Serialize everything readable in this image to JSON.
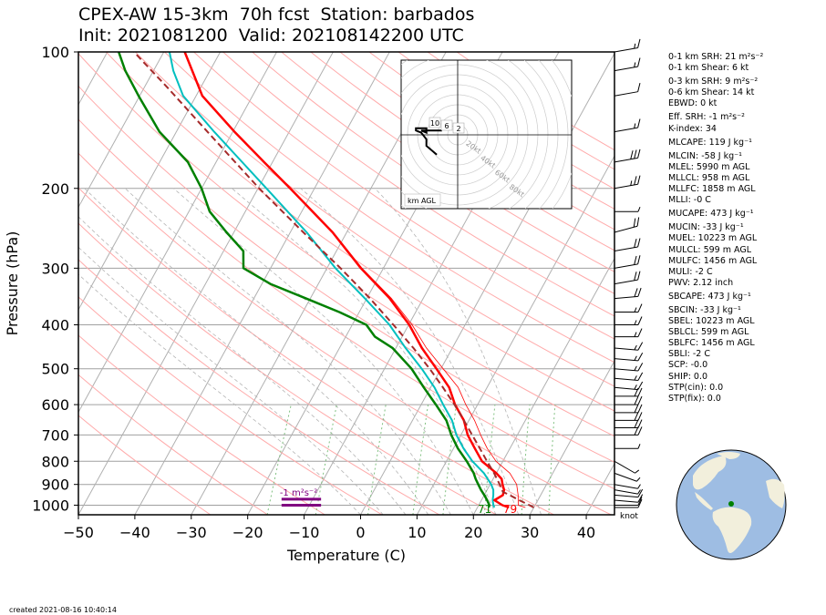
{
  "header": {
    "title_line1": "CPEX-AW 15-3km  70h fcst  Station: barbados",
    "title_line2": "Init: 2021081200  Valid: 202108142200 UTC"
  },
  "footer": {
    "created": "created 2021-08-16 10:40:14"
  },
  "params": [
    {
      "text": "0-1 km SRH: 21 m²s⁻²",
      "gap": false
    },
    {
      "text": "0-1 km Shear: 6 kt",
      "gap": false
    },
    {
      "text": "0-3 km SRH: 9 m²s⁻²",
      "gap": true
    },
    {
      "text": "0-6 km Shear: 14 kt",
      "gap": false
    },
    {
      "text": "EBWD: 0 kt",
      "gap": false
    },
    {
      "text": "Eff. SRH: -1 m²s⁻²",
      "gap": true
    },
    {
      "text": "K-index: 34",
      "gap": false
    },
    {
      "text": "MLCAPE: 119 J kg⁻¹",
      "gap": true
    },
    {
      "text": "MLCIN: -58 J kg⁻¹",
      "gap": true
    },
    {
      "text": "MLEL: 5990 m AGL",
      "gap": false
    },
    {
      "text": "MLLCL: 958 m AGL",
      "gap": false
    },
    {
      "text": "MLLFC: 1858 m AGL",
      "gap": false
    },
    {
      "text": "MLLI: -0 C",
      "gap": false
    },
    {
      "text": "MUCAPE: 473 J kg⁻¹",
      "gap": true
    },
    {
      "text": "MUCIN: -33 J kg⁻¹",
      "gap": true
    },
    {
      "text": "MUEL: 10223 m AGL",
      "gap": false
    },
    {
      "text": "MULCL: 599 m AGL",
      "gap": false
    },
    {
      "text": "MULFC: 1456 m AGL",
      "gap": false
    },
    {
      "text": "MULI: -2 C",
      "gap": false
    },
    {
      "text": "PWV: 2.12 inch",
      "gap": false
    },
    {
      "text": "SBCAPE: 473 J kg⁻¹",
      "gap": true
    },
    {
      "text": "SBCIN: -33 J kg⁻¹",
      "gap": true
    },
    {
      "text": "SBEL: 10223 m AGL",
      "gap": false
    },
    {
      "text": "SBLCL: 599 m AGL",
      "gap": false
    },
    {
      "text": "SBLFC: 1456 m AGL",
      "gap": false
    },
    {
      "text": "SBLI: -2 C",
      "gap": false
    },
    {
      "text": "SCP: -0.0",
      "gap": false
    },
    {
      "text": "SHIP: 0.0",
      "gap": false
    },
    {
      "text": "STP(cin): 0.0",
      "gap": false
    },
    {
      "text": "STP(fix): 0.0",
      "gap": false
    }
  ],
  "chart_data": {
    "type": "line",
    "subtype": "skew-T log-p",
    "xlabel": "Temperature (C)",
    "ylabel": "Pressure (hPa)",
    "xlim": [
      -50,
      45
    ],
    "ylim": [
      1050,
      100
    ],
    "y_scale": "log",
    "x_ticks": [
      -50,
      -40,
      -30,
      -20,
      -10,
      0,
      10,
      20,
      30,
      40
    ],
    "y_ticks": [
      100,
      200,
      300,
      400,
      500,
      600,
      700,
      800,
      900,
      1000
    ],
    "skew_lines_deg_c": [
      -200,
      -190,
      -180,
      -170,
      -160,
      -150,
      -140,
      -130,
      -120,
      -110,
      -100,
      -90,
      -80,
      -70,
      -60,
      -50,
      -40,
      -30,
      -20,
      -10,
      0,
      10,
      20,
      30,
      40
    ],
    "dry_adiabat_theta_c": [
      -30,
      -20,
      -10,
      0,
      10,
      20,
      30,
      40,
      50,
      60,
      70,
      80,
      90,
      100,
      110,
      120,
      130,
      140,
      150,
      160,
      170,
      180,
      190,
      200
    ],
    "moist_adiabat_start_c": [
      0,
      4,
      8,
      12,
      16,
      20,
      24,
      28,
      32
    ],
    "mixing_ratio_gkg": [
      1,
      2,
      4,
      7,
      10,
      16,
      24,
      32
    ],
    "colors": {
      "temperature": "#ff0000",
      "dewpoint": "#008000",
      "virtual_temperature": "#ff0000",
      "wetbulb": "#00bfbf",
      "parcel": "#a52a2a",
      "dry_adiabats": "#ffaaaa",
      "moist_adiabats": "#b4b4b4",
      "mixing_ratio": "#80c080",
      "isotherms": "#b0b0b0",
      "isobars": "#a0a0a0",
      "srh_bar": "#800080",
      "hodograph": "#000000"
    },
    "series": [
      {
        "key": "temperature",
        "p": [
          1012,
          1000,
          975,
          950,
          925,
          900,
          875,
          850,
          800,
          750,
          700,
          650,
          600,
          550,
          500,
          450,
          400,
          350,
          300,
          250,
          200,
          175,
          150,
          125,
          100
        ],
        "t": [
          25.6,
          24.2,
          22.3,
          23.3,
          23.0,
          22.2,
          21.5,
          20.0,
          16.3,
          13.8,
          11.2,
          9.1,
          6.0,
          3.3,
          -0.8,
          -5.4,
          -9.9,
          -15.9,
          -24.0,
          -32.5,
          -44.3,
          -51.5,
          -59.7,
          -68.9,
          -76.3
        ]
      },
      {
        "key": "virtual_temperature",
        "p": [
          1012,
          1000,
          950,
          900,
          850,
          800,
          750,
          700,
          650,
          600,
          550,
          500,
          450,
          400,
          350,
          300,
          250
        ],
        "t": [
          28.5,
          27.0,
          26.0,
          24.7,
          22.4,
          18.8,
          16.0,
          13.5,
          11.0,
          7.9,
          4.9,
          0.4,
          -4.6,
          -9.4,
          -15.6,
          -23.8,
          -32.4
        ]
      },
      {
        "key": "dewpoint",
        "p": [
          1012,
          1000,
          975,
          950,
          925,
          900,
          875,
          850,
          800,
          750,
          700,
          650,
          600,
          550,
          500,
          450,
          425,
          400,
          375,
          350,
          325,
          300,
          275,
          250,
          225,
          200,
          175,
          150,
          125,
          110,
          100
        ],
        "t": [
          22.0,
          21.9,
          21.0,
          20.0,
          18.9,
          17.9,
          16.9,
          16.0,
          13.6,
          10.8,
          8.3,
          6.0,
          2.6,
          -1.2,
          -5.2,
          -10.6,
          -14.8,
          -17.5,
          -23.5,
          -30.7,
          -38.5,
          -44.8,
          -46.5,
          -51.3,
          -56.3,
          -60.0,
          -65.0,
          -73.0,
          -80.2,
          -85.0,
          -88.0
        ]
      },
      {
        "key": "wetbulb",
        "p": [
          1012,
          1000,
          975,
          950,
          925,
          900,
          850,
          800,
          750,
          700,
          650,
          600,
          550,
          500,
          450,
          400,
          350,
          300,
          250,
          200,
          150,
          125,
          110,
          100
        ],
        "t": [
          23.0,
          22.6,
          22.0,
          21.6,
          21.1,
          20.2,
          17.8,
          14.6,
          11.8,
          9.2,
          7.0,
          3.9,
          0.7,
          -3.4,
          -8.3,
          -13.4,
          -20.3,
          -28.5,
          -37.1,
          -48.5,
          -63.3,
          -72.3,
          -76.5,
          -79.0
        ]
      },
      {
        "key": "parcel",
        "p": [
          1012,
          1000,
          975,
          950,
          935,
          900,
          850,
          800,
          750,
          700,
          650,
          600,
          550,
          500,
          450,
          400,
          350,
          300,
          250,
          200,
          150,
          120,
          100
        ],
        "t": [
          30.0,
          29.0,
          26.7,
          24.5,
          23.0,
          21.7,
          19.6,
          17.2,
          14.7,
          12.0,
          9.1,
          5.9,
          2.2,
          -2.0,
          -6.9,
          -12.7,
          -19.4,
          -27.6,
          -37.7,
          -49.8,
          -64.5,
          -75.8,
          -85.3
        ]
      }
    ],
    "surface_labels": [
      {
        "text": "71",
        "color": "#008000",
        "t": 22
      },
      {
        "text": "79",
        "color": "#ff0000",
        "t": 26.5
      }
    ],
    "srh_annotation": {
      "text": "-1 m²s⁻²",
      "t_range": [
        -14,
        -7
      ],
      "p_bottom": 1000,
      "p_top": 970
    },
    "wind_barbs": [
      {
        "p": 1012,
        "spd": 10,
        "dir": 90
      },
      {
        "p": 1000,
        "spd": 10,
        "dir": 90
      },
      {
        "p": 975,
        "spd": 12,
        "dir": 95
      },
      {
        "p": 950,
        "spd": 10,
        "dir": 95
      },
      {
        "p": 925,
        "spd": 8,
        "dir": 100
      },
      {
        "p": 900,
        "spd": 8,
        "dir": 100
      },
      {
        "p": 850,
        "spd": 5,
        "dir": 110
      },
      {
        "p": 800,
        "spd": 5,
        "dir": 120
      },
      {
        "p": 750,
        "spd": 5,
        "dir": 90
      },
      {
        "p": 700,
        "spd": 20,
        "dir": 90
      },
      {
        "p": 675,
        "spd": 20,
        "dir": 90
      },
      {
        "p": 650,
        "spd": 20,
        "dir": 90
      },
      {
        "p": 625,
        "spd": 20,
        "dir": 90
      },
      {
        "p": 600,
        "spd": 20,
        "dir": 90
      },
      {
        "p": 575,
        "spd": 20,
        "dir": 90
      },
      {
        "p": 550,
        "spd": 15,
        "dir": 95
      },
      {
        "p": 525,
        "spd": 15,
        "dir": 95
      },
      {
        "p": 500,
        "spd": 15,
        "dir": 95
      },
      {
        "p": 475,
        "spd": 15,
        "dir": 95
      },
      {
        "p": 450,
        "spd": 15,
        "dir": 95
      },
      {
        "p": 425,
        "spd": 15,
        "dir": 90
      },
      {
        "p": 400,
        "spd": 15,
        "dir": 90
      },
      {
        "p": 375,
        "spd": 15,
        "dir": 90
      },
      {
        "p": 350,
        "spd": 20,
        "dir": 85
      },
      {
        "p": 325,
        "spd": 20,
        "dir": 80
      },
      {
        "p": 300,
        "spd": 20,
        "dir": 80
      },
      {
        "p": 275,
        "spd": 20,
        "dir": 80
      },
      {
        "p": 250,
        "spd": 20,
        "dir": 75
      },
      {
        "p": 225,
        "spd": 5,
        "dir": 90
      },
      {
        "p": 200,
        "spd": 25,
        "dir": 80
      },
      {
        "p": 175,
        "spd": 30,
        "dir": 80
      },
      {
        "p": 150,
        "spd": 15,
        "dir": 80
      },
      {
        "p": 125,
        "spd": 10,
        "dir": 80
      },
      {
        "p": 110,
        "spd": 15,
        "dir": 80
      },
      {
        "p": 100,
        "spd": 15,
        "dir": 80
      }
    ],
    "barb_unit_label": "knot",
    "hodograph": {
      "ring_labels": [
        "20kt",
        "40kt",
        "60kt",
        "80kt"
      ],
      "height_labels": [
        "10",
        "6",
        "2"
      ],
      "axis_label": "km AGL",
      "points_u": [
        -3,
        -5,
        -7,
        -6,
        -6,
        -8,
        -8,
        -7,
        -6,
        -6,
        -4
      ],
      "points_v": [
        2,
        2,
        2,
        1,
        3,
        3,
        2,
        1,
        -2,
        -5,
        -9
      ]
    },
    "globe_station": {
      "lat": 13.1,
      "lon": -59.6
    }
  }
}
